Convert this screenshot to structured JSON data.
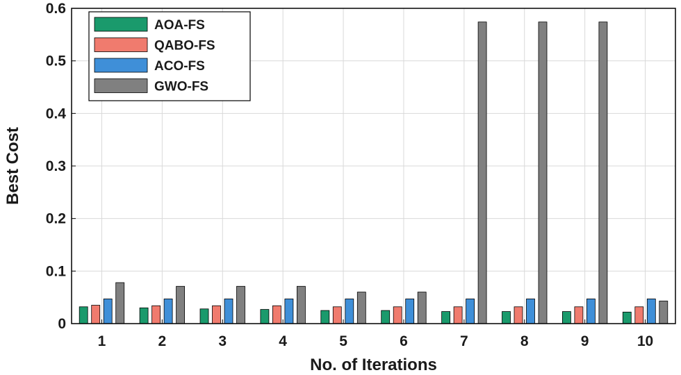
{
  "chart_data": {
    "type": "bar",
    "title": "",
    "xlabel": "No. of Iterations",
    "ylabel": "Best Cost",
    "categories": [
      "1",
      "2",
      "3",
      "4",
      "5",
      "6",
      "7",
      "8",
      "9",
      "10"
    ],
    "ylim": [
      0,
      0.6
    ],
    "yticks": [
      "0",
      "0.1",
      "0.2",
      "0.3",
      "0.4",
      "0.5",
      "0.6"
    ],
    "grid": true,
    "legend_position": "top-left",
    "series": [
      {
        "name": "AOA-FS",
        "color": "#1a9a6c",
        "values": [
          0.032,
          0.03,
          0.028,
          0.027,
          0.025,
          0.025,
          0.023,
          0.023,
          0.023,
          0.022
        ]
      },
      {
        "name": "QABO-FS",
        "color": "#f07b6e",
        "values": [
          0.035,
          0.034,
          0.034,
          0.034,
          0.032,
          0.032,
          0.032,
          0.032,
          0.032,
          0.032
        ]
      },
      {
        "name": "ACO-FS",
        "color": "#3f8fd8",
        "values": [
          0.047,
          0.047,
          0.047,
          0.047,
          0.047,
          0.047,
          0.047,
          0.047,
          0.047,
          0.047
        ]
      },
      {
        "name": "GWO-FS",
        "color": "#808080",
        "values": [
          0.078,
          0.071,
          0.071,
          0.071,
          0.06,
          0.06,
          0.574,
          0.574,
          0.574,
          0.043
        ]
      }
    ]
  }
}
